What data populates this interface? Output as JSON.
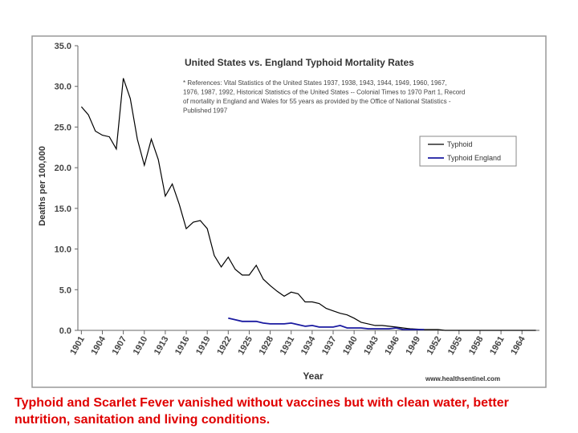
{
  "chart_data": {
    "type": "line",
    "title": "United States vs. England Typhoid Mortality Rates",
    "notes": [
      "* References: Vital Statistics of the United States 1937, 1938, 1943, 1944, 1949, 1960, 1967,",
      "1976, 1987, 1992, Historical Statistics of the United States -- Colonial Times to 1970 Part 1, Record",
      "of mortality in England and Wales for 55 years as provided by the Office of National Statistics -",
      "Published 1997"
    ],
    "x_label": "Year",
    "y_label": "Deaths per 100,000",
    "source": "www.healthsentinel.com",
    "x": [
      1901,
      1902,
      1903,
      1904,
      1905,
      1906,
      1907,
      1908,
      1909,
      1910,
      1911,
      1912,
      1913,
      1914,
      1915,
      1916,
      1917,
      1918,
      1919,
      1920,
      1921,
      1922,
      1923,
      1924,
      1925,
      1926,
      1927,
      1928,
      1929,
      1930,
      1931,
      1932,
      1933,
      1934,
      1935,
      1936,
      1937,
      1938,
      1939,
      1940,
      1941,
      1942,
      1943,
      1944,
      1945,
      1946,
      1947,
      1948,
      1949,
      1950,
      1951,
      1952,
      1953,
      1954,
      1955,
      1956,
      1957,
      1958,
      1959,
      1960,
      1961,
      1962,
      1963,
      1964,
      1965,
      1966
    ],
    "series": [
      {
        "name": "Typhoid",
        "color": "#000000",
        "values": [
          27.5,
          26.5,
          24.5,
          24,
          23.8,
          22.3,
          31,
          28.5,
          23.5,
          20.3,
          23.5,
          21,
          16.5,
          18,
          15.5,
          12.5,
          13.3,
          13.5,
          12.5,
          9.2,
          7.8,
          9,
          7.5,
          6.8,
          6.8,
          8,
          6.3,
          5.5,
          4.8,
          4.2,
          4.7,
          4.5,
          3.5,
          3.5,
          3.3,
          2.7,
          2.4,
          2.1,
          1.9,
          1.5,
          1.0,
          0.8,
          0.6,
          0.6,
          0.5,
          0.4,
          0.3,
          0.2,
          0.15,
          0.1,
          0.1,
          0.1,
          0,
          0,
          0,
          0,
          0,
          0,
          0,
          0,
          0,
          0,
          0,
          0,
          0,
          0
        ]
      },
      {
        "name": "Typhoid England",
        "color": "#1a1aa0",
        "values": [
          null,
          null,
          null,
          null,
          null,
          null,
          null,
          null,
          null,
          null,
          null,
          null,
          null,
          null,
          null,
          null,
          null,
          null,
          null,
          null,
          null,
          1.5,
          1.3,
          1.1,
          1.1,
          1.1,
          0.9,
          0.8,
          0.8,
          0.8,
          0.9,
          0.7,
          0.5,
          0.6,
          0.4,
          0.4,
          0.4,
          0.6,
          0.3,
          0.3,
          0.3,
          0.2,
          0.2,
          0.2,
          0.2,
          0.3,
          0.1,
          0.1,
          0.1,
          0.1,
          null,
          null,
          null,
          null,
          null,
          null,
          null,
          null,
          null,
          null,
          null,
          null,
          null,
          null,
          null,
          null
        ]
      }
    ],
    "xlim": [
      1900.5,
      1966.5
    ],
    "xticks": [
      1901,
      1904,
      1907,
      1910,
      1913,
      1916,
      1919,
      1922,
      1925,
      1928,
      1931,
      1934,
      1937,
      1940,
      1943,
      1946,
      1949,
      1952,
      1955,
      1958,
      1961,
      1964
    ],
    "ylim": [
      0,
      35
    ],
    "yticks": [
      {
        "value": 0,
        "label": "0.0"
      },
      {
        "value": 5,
        "label": "5.0"
      },
      {
        "value": 10,
        "label": "10.0"
      },
      {
        "value": 15,
        "label": "15.0"
      },
      {
        "value": 20,
        "label": "20.0"
      },
      {
        "value": 25,
        "label": "25.0"
      },
      {
        "value": 30,
        "label": "30.0"
      },
      {
        "value": 35,
        "label": "35.0"
      }
    ],
    "grid": false,
    "legend": "upper-right",
    "caption": [
      "Typhoid and Scarlet Fever vanished without vaccines but with clean water, better",
      "nutrition, sanitation and living conditions."
    ]
  }
}
